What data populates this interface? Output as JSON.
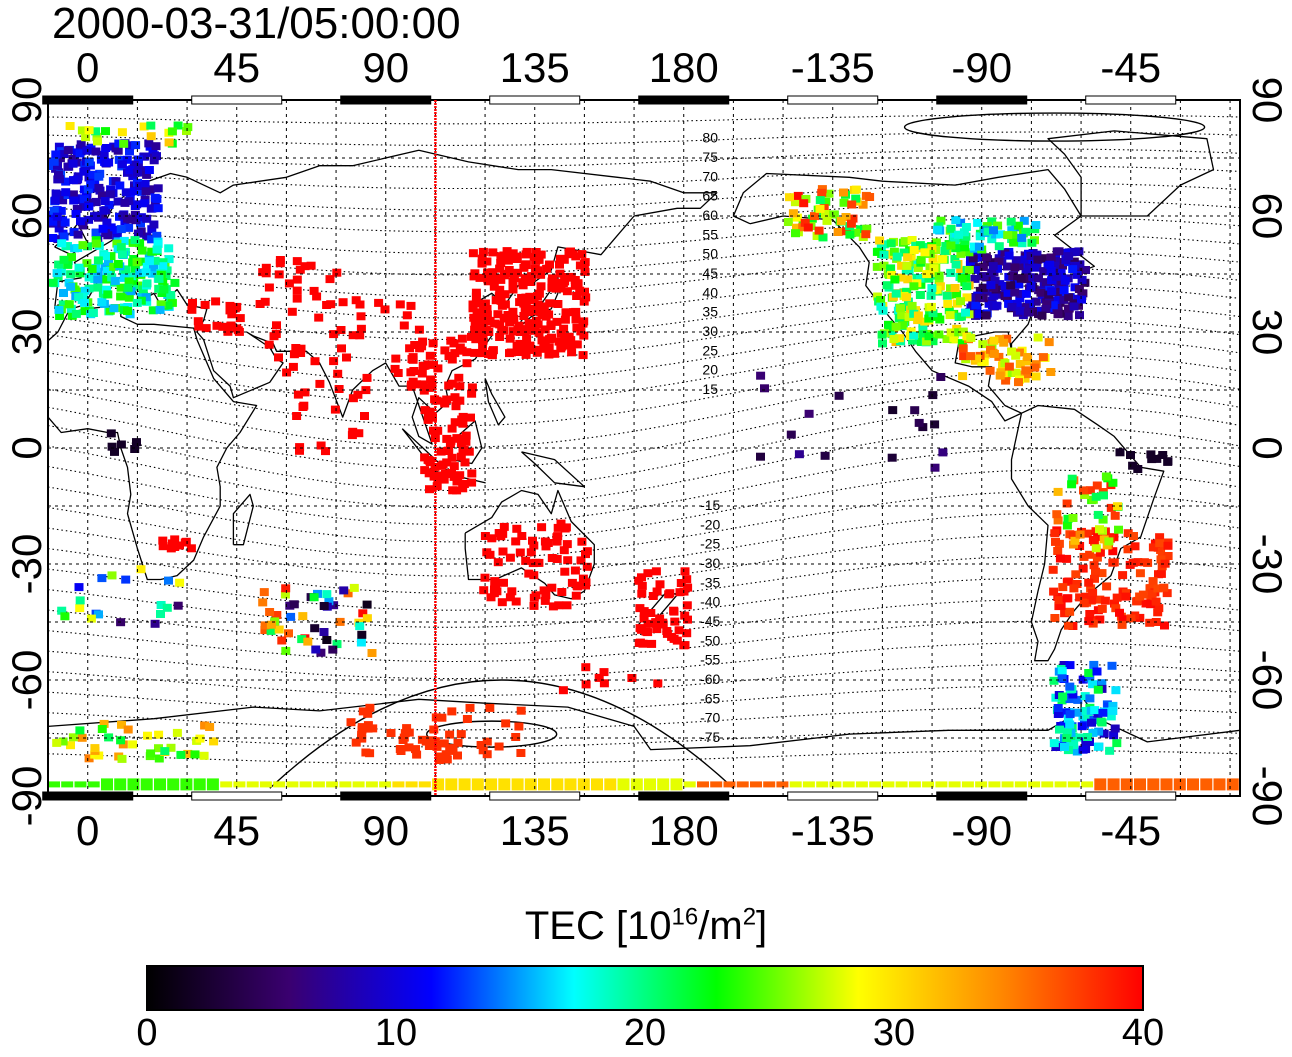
{
  "timestamp": "2000-03-31/05:00:00",
  "top_lon_labels": [
    "0",
    "45",
    "90",
    "135",
    "180",
    "-135",
    "-90",
    "-45"
  ],
  "bottom_lon_labels": [
    "0",
    "45",
    "90",
    "135",
    "180",
    "-135",
    "-90",
    "-45"
  ],
  "left_lat_labels": [
    "90",
    "60",
    "30",
    "0",
    "-30",
    "-60",
    "-90"
  ],
  "right_lat_labels": [
    "90",
    "60",
    "30",
    "0",
    "-30",
    "-60",
    "-90"
  ],
  "contour_labels": [
    "80",
    "75",
    "70",
    "65",
    "60",
    "55",
    "50",
    "45",
    "40",
    "35",
    "30",
    "25",
    "20",
    "15",
    "-15",
    "-20",
    "-25",
    "-30",
    "-35",
    "-40",
    "-45",
    "-50",
    "-55",
    "-60",
    "-65",
    "-70",
    "-75"
  ],
  "colorbar": {
    "title_main": "TEC  [10",
    "title_exp1": "16",
    "title_mid": "/m",
    "title_exp2": "2",
    "title_end": "]",
    "ticks": [
      "0",
      "10",
      "20",
      "30",
      "40"
    ],
    "range": [
      0,
      40
    ],
    "colors": [
      "#000000",
      "#3a0070",
      "#0000ff",
      "#00ffff",
      "#00ff00",
      "#ffff00",
      "#ff8800",
      "#ff0000"
    ]
  },
  "map": {
    "lon_range": [
      -12,
      348
    ],
    "lat_range": [
      -90,
      90
    ],
    "marker_longitude": 105,
    "marker_color": "#ff0000"
  },
  "tec_regions": [
    {
      "name": "europe",
      "lon": [
        -12,
        20
      ],
      "lat": [
        48,
        80
      ],
      "value": 9
    },
    {
      "name": "europe-south",
      "lon": [
        -5,
        25
      ],
      "lat": [
        33,
        52
      ],
      "value": 19
    },
    {
      "name": "japan-china",
      "lon": [
        115,
        150
      ],
      "lat": [
        25,
        52
      ],
      "value": 40
    },
    {
      "name": "north-america-east",
      "lon": [
        265,
        300
      ],
      "lat": [
        35,
        52
      ],
      "value": 6
    },
    {
      "name": "north-america-west",
      "lon": [
        237,
        265
      ],
      "lat": [
        30,
        55
      ],
      "value": 22
    },
    {
      "name": "south-america-south",
      "lon": [
        290,
        308
      ],
      "lat": [
        -78,
        -55
      ],
      "value": 14
    },
    {
      "name": "antarctic-band",
      "lon": [
        -12,
        348
      ],
      "lat": [
        -90,
        -85
      ],
      "value": 30
    }
  ]
}
